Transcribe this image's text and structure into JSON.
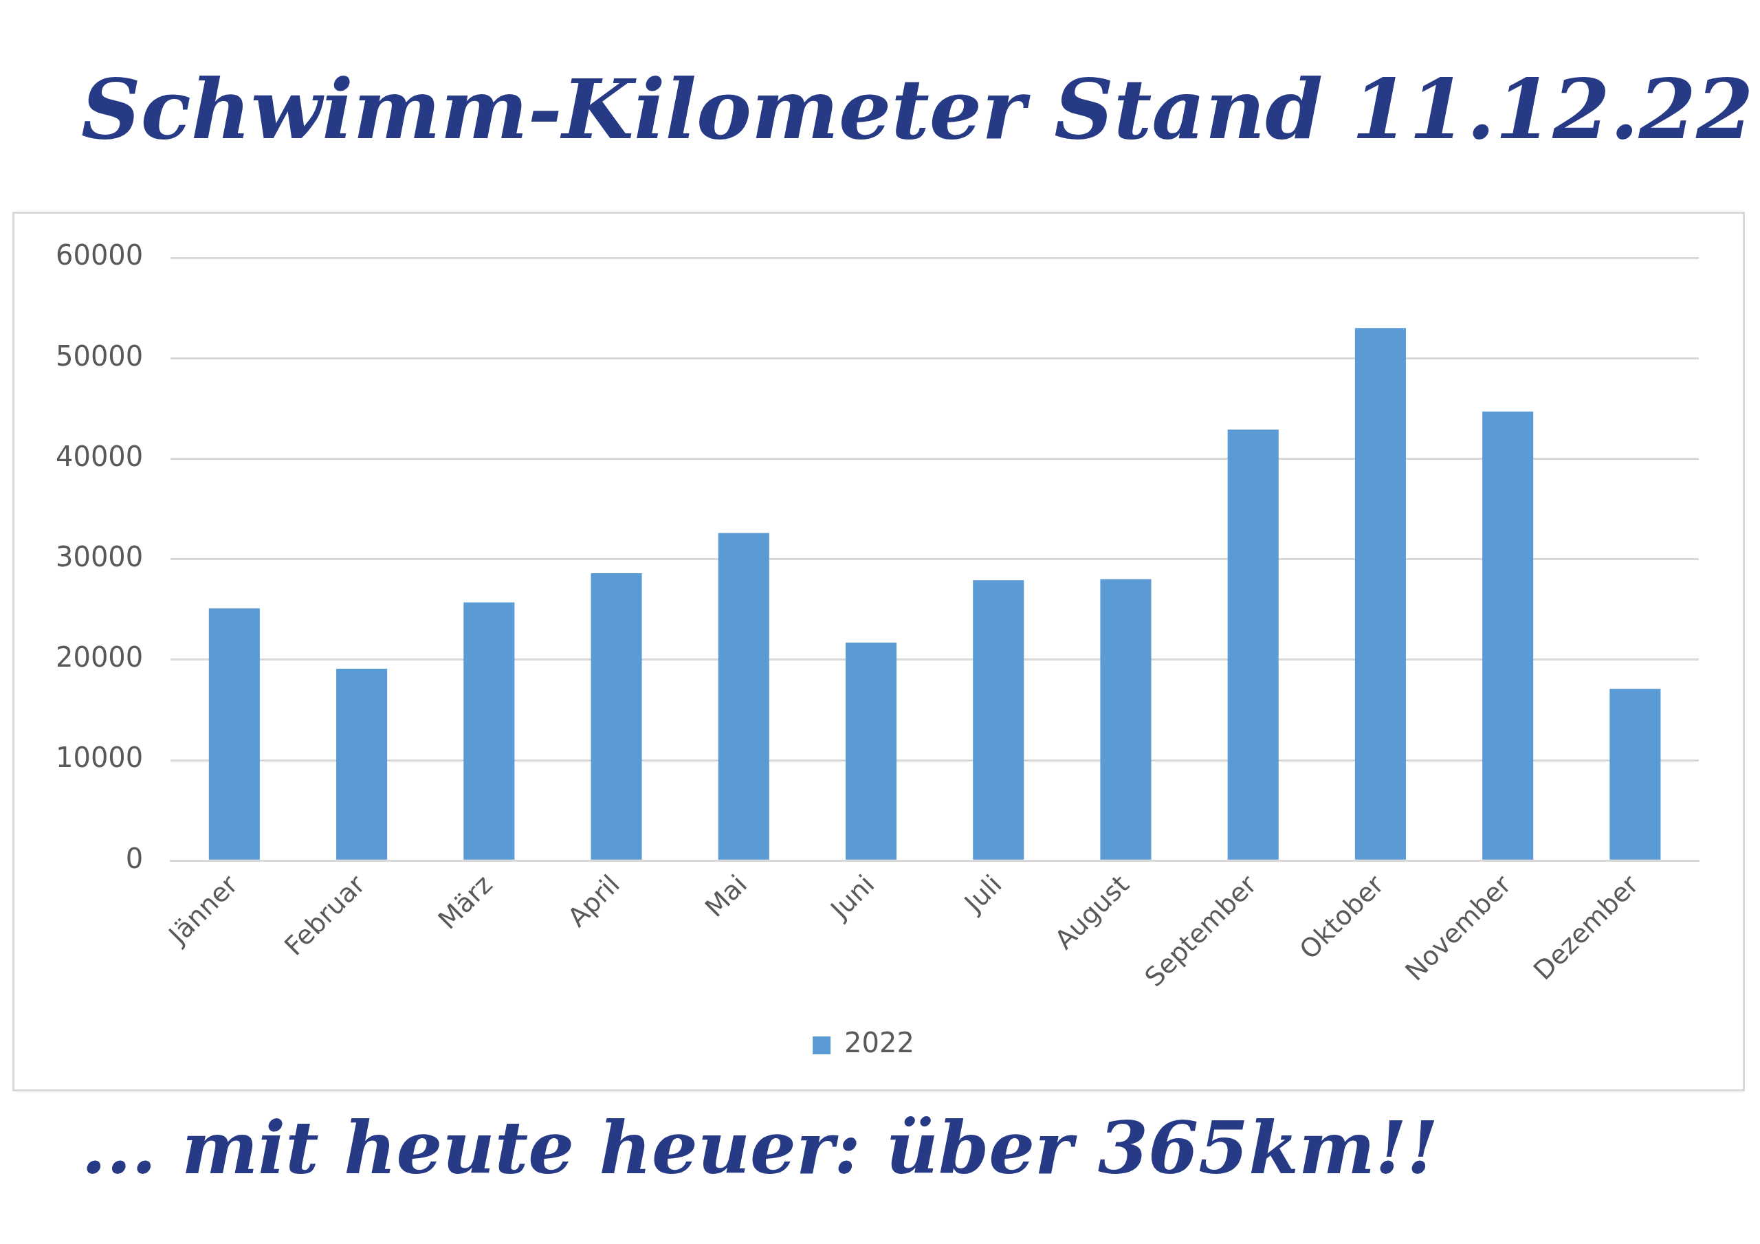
{
  "chart_data": {
    "type": "bar",
    "title": "Schwimm-Kilometer Stand 11.12.22",
    "categories": [
      "Jänner",
      "Februar",
      "März",
      "April",
      "Mai",
      "Juni",
      "Juli",
      "August",
      "September",
      "Oktober",
      "November",
      "Dezember"
    ],
    "series": [
      {
        "name": "2022",
        "color": "#5b9bd5",
        "values": [
          25100,
          19100,
          25700,
          28600,
          32600,
          21700,
          27900,
          28000,
          42900,
          53000,
          44700,
          17100
        ]
      }
    ],
    "ylim": [
      0,
      60000
    ],
    "yticks": [
      0,
      10000,
      20000,
      30000,
      40000,
      50000,
      60000
    ],
    "grid": "y",
    "legend": "bottom",
    "annotations": [
      "... mit heute heuer: über 365km!!"
    ]
  }
}
